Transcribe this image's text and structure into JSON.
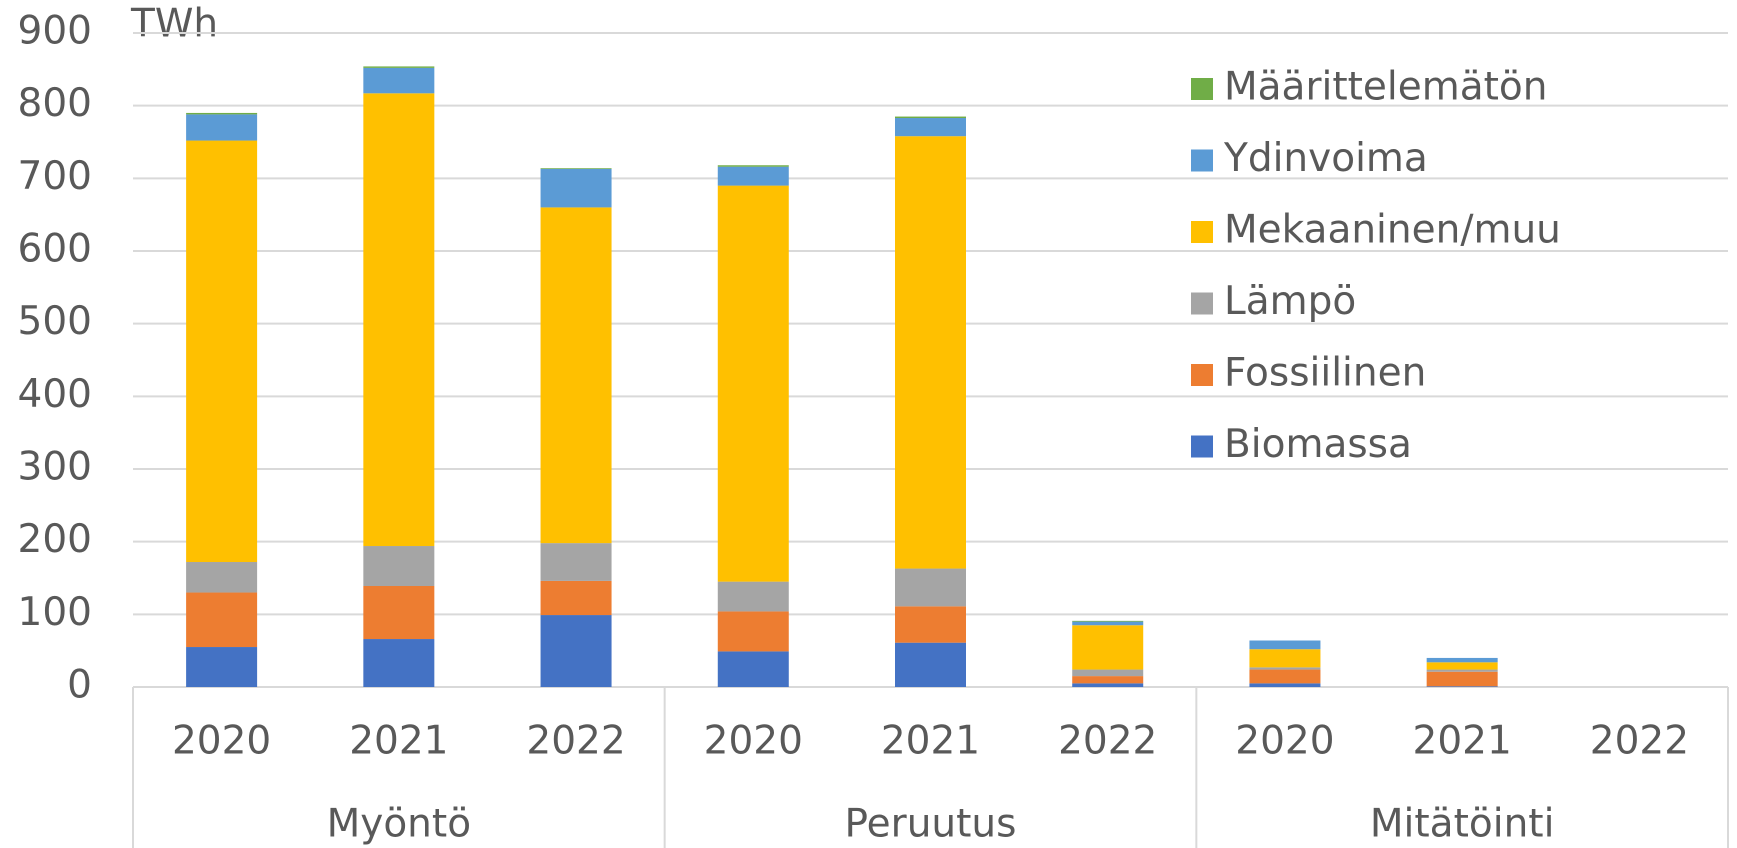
{
  "chart_data": {
    "type": "stacked_bar",
    "ylabel": "TWh",
    "categories": [
      "2020",
      "2021",
      "2022",
      "2020",
      "2021",
      "2022",
      "2020",
      "2021",
      "2022"
    ],
    "groups": [
      "Myöntö",
      "Peruutus",
      "Mitätöinti"
    ],
    "series": [
      {
        "name": "Biomassa",
        "color": "#4472c4",
        "values": [
          55,
          66,
          99,
          49,
          61,
          5,
          5,
          1,
          0
        ]
      },
      {
        "name": "Fossiilinen",
        "color": "#ed7d31",
        "values": [
          75,
          73,
          47,
          55,
          50,
          10,
          19,
          20,
          0
        ]
      },
      {
        "name": "Lämpö",
        "color": "#a5a5a5",
        "values": [
          42,
          55,
          52,
          41,
          52,
          9,
          3,
          3,
          0
        ]
      },
      {
        "name": "Mekaaninen/muu",
        "color": "#ffc000",
        "values": [
          580,
          623,
          462,
          545,
          595,
          61,
          25,
          10,
          0
        ]
      },
      {
        "name": "Ydinvoima",
        "color": "#5b9bd5",
        "values": [
          36,
          35,
          53,
          26,
          25,
          5,
          12,
          6,
          0
        ]
      },
      {
        "name": "Määrittelemätön",
        "color": "#70ad47",
        "values": [
          2,
          2,
          1,
          2,
          2,
          1,
          0,
          0,
          0
        ]
      }
    ],
    "ylim": [
      0,
      900
    ],
    "yticks": [
      0,
      100,
      200,
      300,
      400,
      500,
      600,
      700,
      800,
      900
    ],
    "grid": true
  }
}
